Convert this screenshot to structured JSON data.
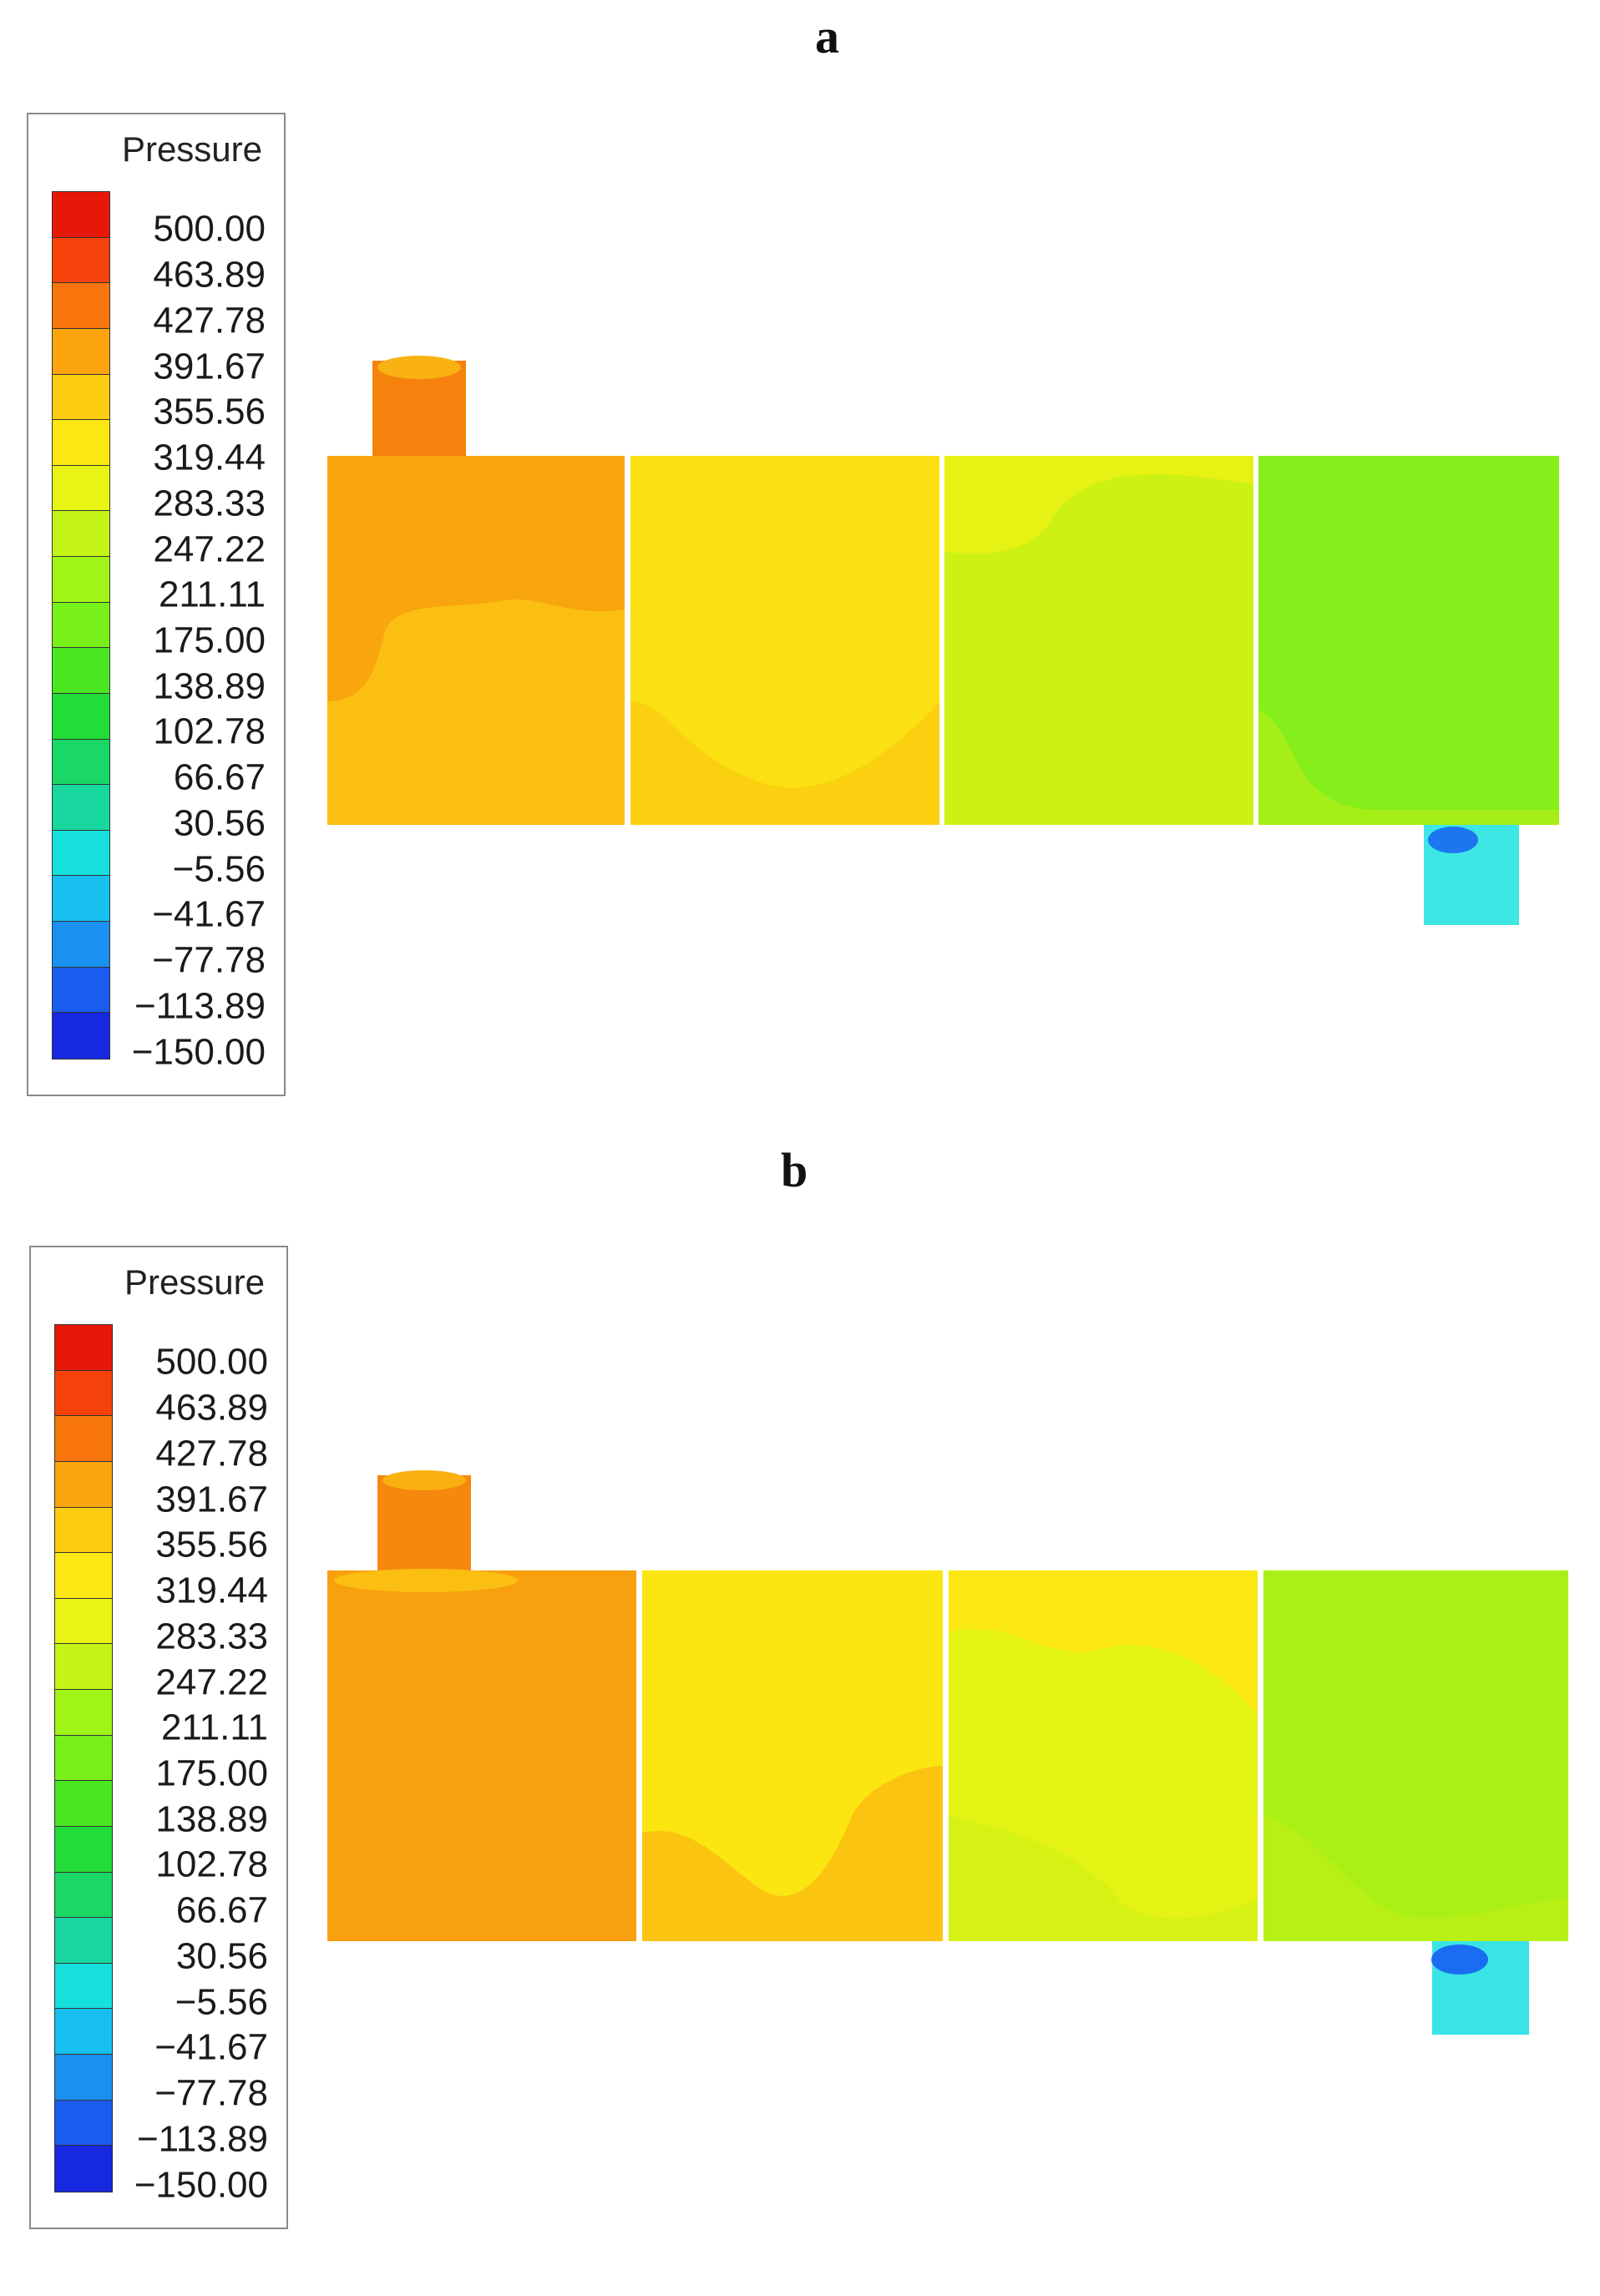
{
  "figure": {
    "panels": [
      {
        "label": "a",
        "legend": {
          "title": "Pressure",
          "ticks": [
            "500.00",
            "463.89",
            "427.78",
            "391.67",
            "355.56",
            "319.44",
            "283.33",
            "247.22",
            "211.11",
            "175.00",
            "138.89",
            "102.78",
            "66.67",
            "30.56",
            "−5.56",
            "−41.67",
            "−77.78",
            "−113.89",
            "−150.00"
          ],
          "colors": [
            "#e81808",
            "#f5420a",
            "#f8760c",
            "#fba40e",
            "#fccc10",
            "#fbe812",
            "#e8f514",
            "#c4f516",
            "#a0f516",
            "#78f01a",
            "#4ae622",
            "#22dc38",
            "#1ad866",
            "#18d8a0",
            "#16e0dc",
            "#18c0f0",
            "#1a90f0",
            "#1a5cf0",
            "#1628e0"
          ]
        }
      },
      {
        "label": "b",
        "legend": {
          "title": "Pressure",
          "ticks": [
            "500.00",
            "463.89",
            "427.78",
            "391.67",
            "355.56",
            "319.44",
            "283.33",
            "247.22",
            "211.11",
            "175.00",
            "138.89",
            "102.78",
            "66.67",
            "30.56",
            "−5.56",
            "−41.67",
            "−77.78",
            "−113.89",
            "−150.00"
          ],
          "colors": [
            "#e81808",
            "#f5420a",
            "#f8760c",
            "#fba40e",
            "#fccc10",
            "#fbe812",
            "#e8f514",
            "#c4f516",
            "#a0f516",
            "#78f01a",
            "#4ae622",
            "#22dc38",
            "#1ad866",
            "#18d8a0",
            "#16e0dc",
            "#18c0f0",
            "#1a90f0",
            "#1a5cf0",
            "#1628e0"
          ]
        }
      }
    ]
  }
}
